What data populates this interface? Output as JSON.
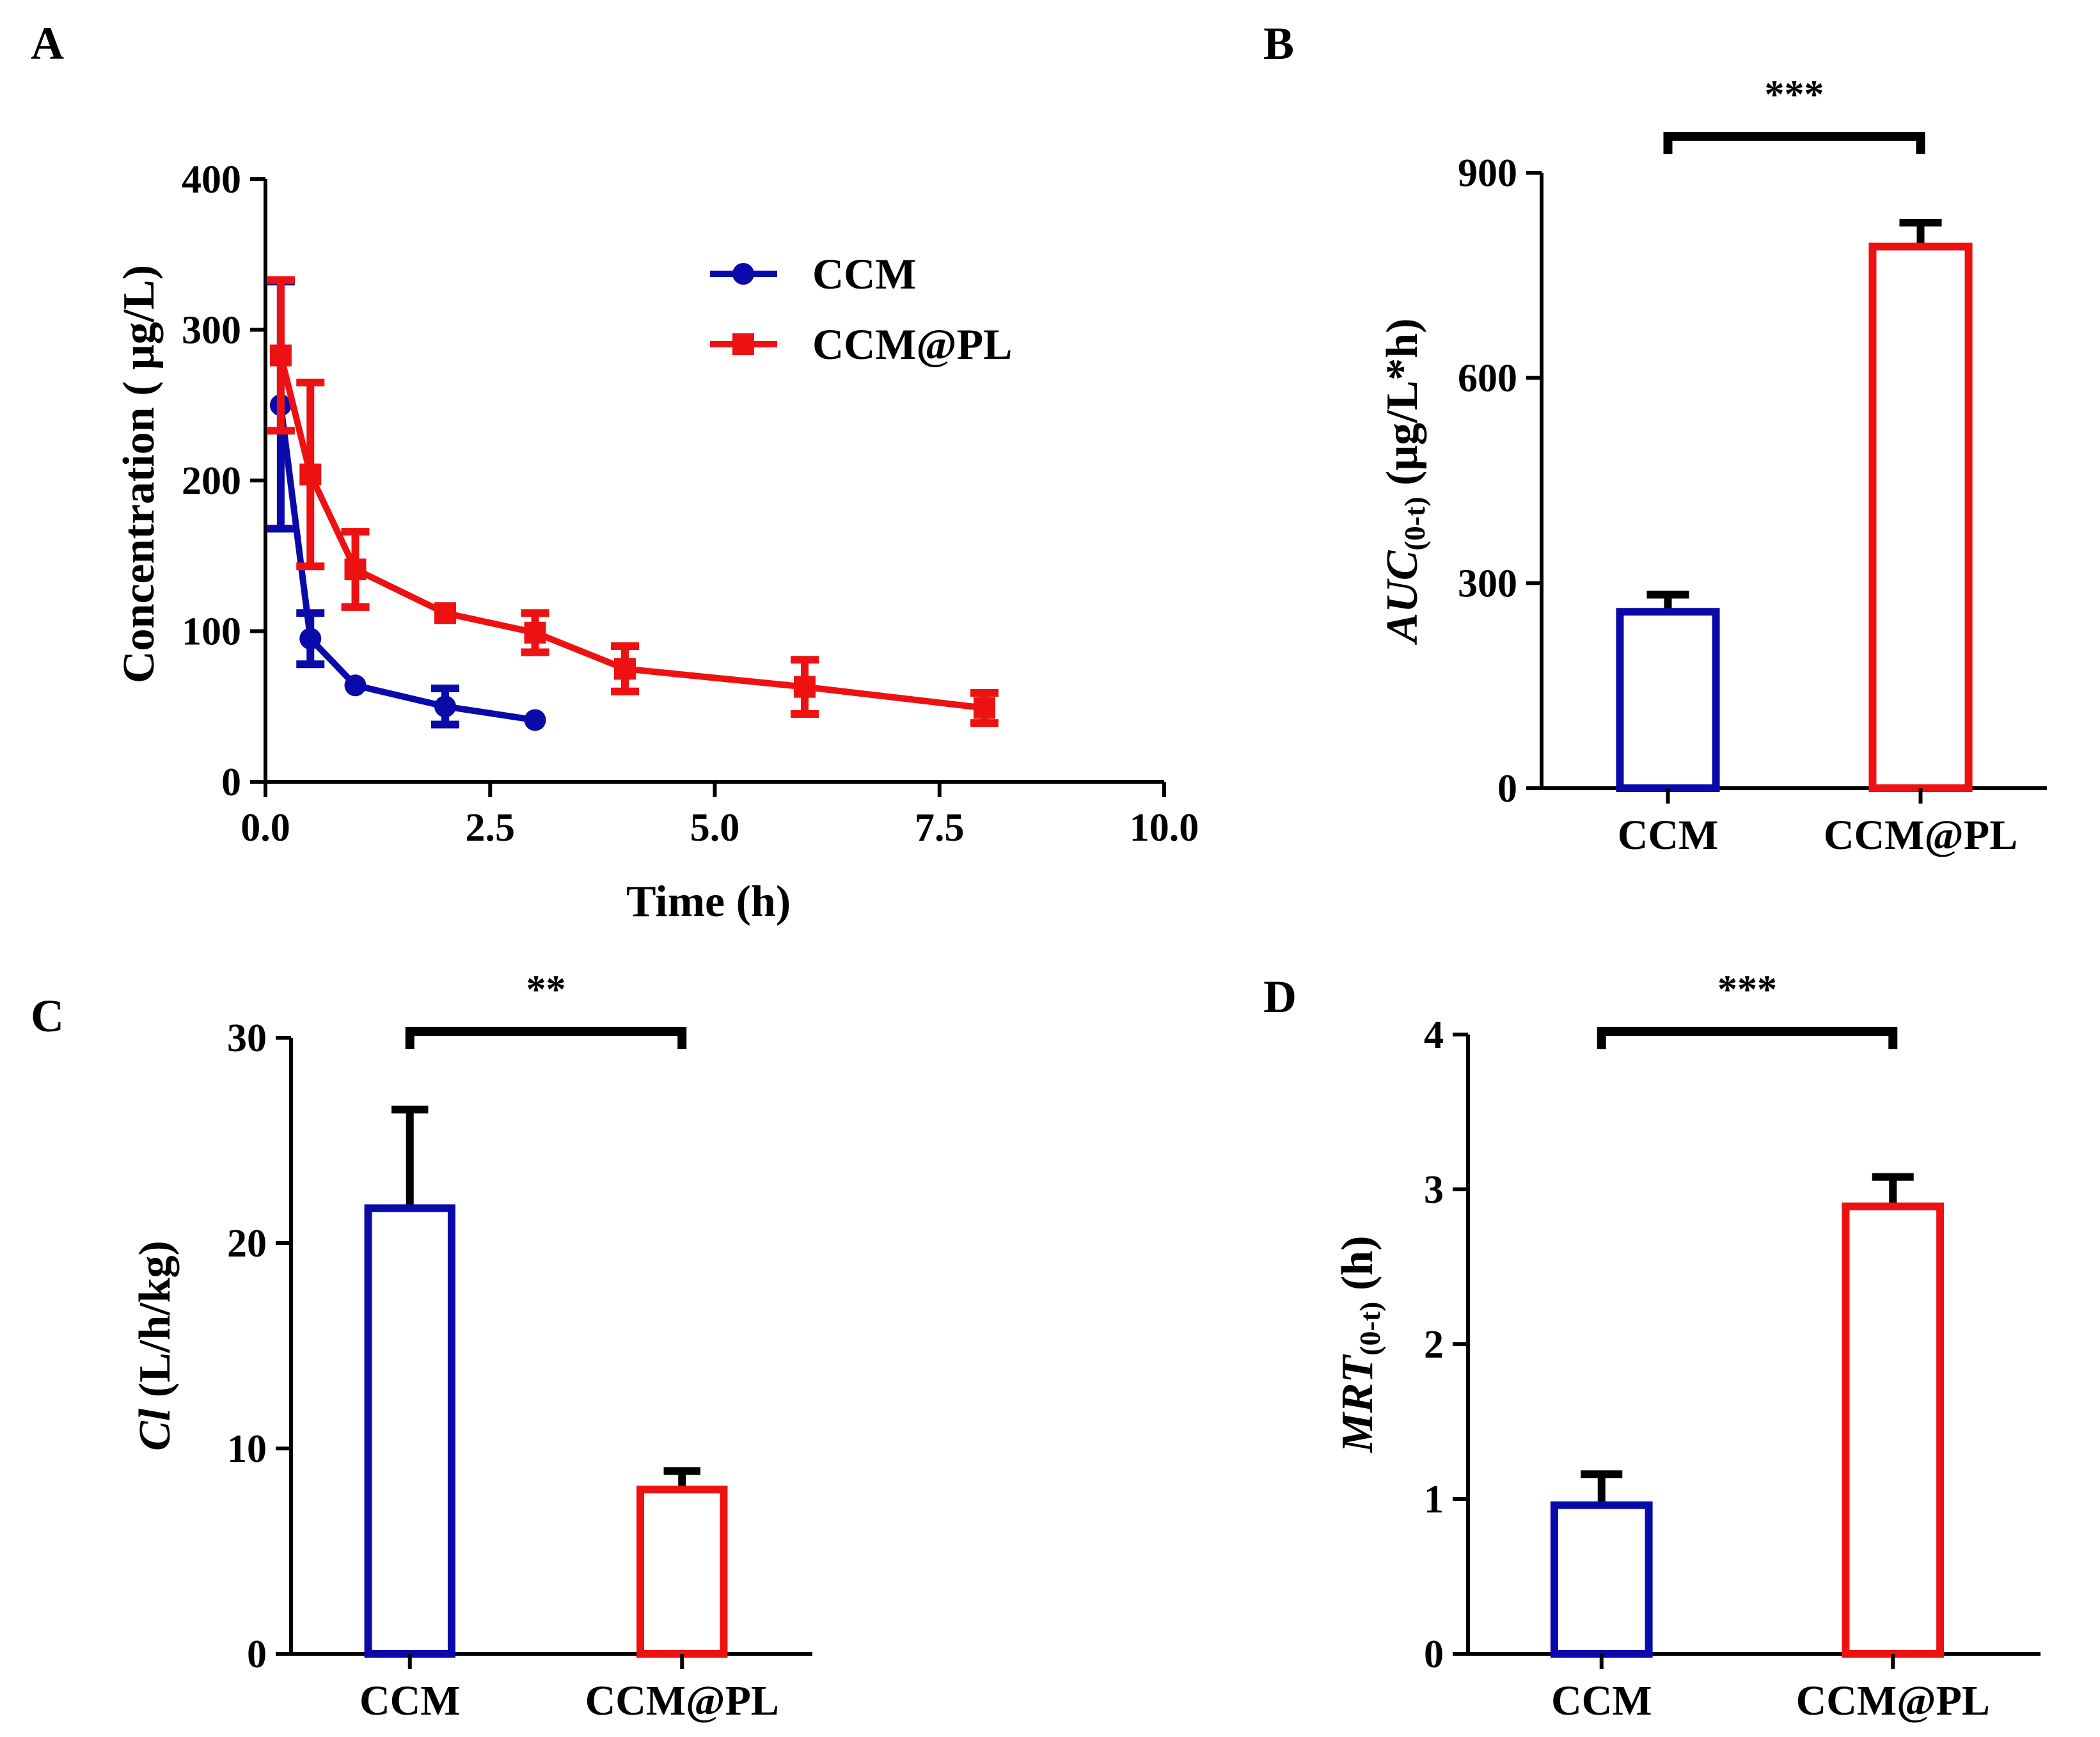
{
  "panels": {
    "A": {
      "label": "A"
    },
    "B": {
      "label": "B"
    },
    "C": {
      "label": "C"
    },
    "D": {
      "label": "D"
    }
  },
  "colors": {
    "ccm": "#0a0aaa",
    "ccm_pl": "#ee1111",
    "axis": "#000000"
  },
  "chart_data": [
    {
      "id": "A",
      "type": "line",
      "title": "",
      "xlabel": "Time (h)",
      "ylabel": "Concentration ( μg/L)",
      "xlim": [
        0,
        10
      ],
      "ylim": [
        0,
        400
      ],
      "xticks": [
        0,
        2.5,
        5,
        7.5,
        10
      ],
      "xtick_labels": [
        "0.0",
        "2.5",
        "5.0",
        "7.5",
        "10.0"
      ],
      "yticks": [
        0,
        100,
        200,
        300,
        400
      ],
      "ytick_labels": [
        "0",
        "100",
        "200",
        "300",
        "400"
      ],
      "legend_position": "top-right",
      "series": [
        {
          "name": "CCM",
          "marker": "circle",
          "color": "#0a0aaa",
          "x": [
            0.17,
            0.5,
            1,
            2,
            3
          ],
          "y": [
            250,
            95,
            64,
            50,
            41
          ],
          "err": [
            82,
            17,
            0,
            12,
            0
          ]
        },
        {
          "name": "CCM@PL",
          "marker": "square",
          "color": "#ee1111",
          "x": [
            0.17,
            0.5,
            1,
            2,
            3,
            4,
            6,
            8
          ],
          "y": [
            283,
            204,
            141,
            112,
            99,
            75,
            63,
            49
          ],
          "err": [
            50,
            61,
            25,
            0,
            13,
            15,
            18,
            10
          ]
        }
      ]
    },
    {
      "id": "B",
      "type": "bar",
      "categories": [
        "CCM",
        "CCM@PL"
      ],
      "values": [
        258,
        792
      ],
      "errors": [
        25,
        35
      ],
      "colors": [
        "#0a0aaa",
        "#ee1111"
      ],
      "ylabel_main": "AUC",
      "ylabel_sub": "(0-t)",
      "ylabel_unit": " (μg/L*h)",
      "ylim": [
        0,
        900
      ],
      "yticks": [
        0,
        300,
        600,
        900
      ],
      "ytick_labels": [
        "0",
        "300",
        "600",
        "900"
      ],
      "significance": "***"
    },
    {
      "id": "C",
      "type": "bar",
      "categories": [
        "CCM",
        "CCM@PL"
      ],
      "values": [
        21.7,
        8.0
      ],
      "errors": [
        4.8,
        0.9
      ],
      "colors": [
        "#0a0aaa",
        "#ee1111"
      ],
      "ylabel_main": "Cl",
      "ylabel_sub": "",
      "ylabel_unit": " (L/h/kg)",
      "ylim": [
        0,
        30
      ],
      "yticks": [
        0,
        10,
        20,
        30
      ],
      "ytick_labels": [
        "0",
        "10",
        "20",
        "30"
      ],
      "significance": "**"
    },
    {
      "id": "D",
      "type": "bar",
      "categories": [
        "CCM",
        "CCM@PL"
      ],
      "values": [
        0.96,
        2.89
      ],
      "errors": [
        0.2,
        0.19
      ],
      "colors": [
        "#0a0aaa",
        "#ee1111"
      ],
      "ylabel_main": "MRT",
      "ylabel_sub": "(0-t)",
      "ylabel_unit": " (h)",
      "ylim": [
        0,
        4
      ],
      "yticks": [
        0,
        1,
        2,
        3,
        4
      ],
      "ytick_labels": [
        "0",
        "1",
        "2",
        "3",
        "4"
      ],
      "significance": "***"
    }
  ]
}
